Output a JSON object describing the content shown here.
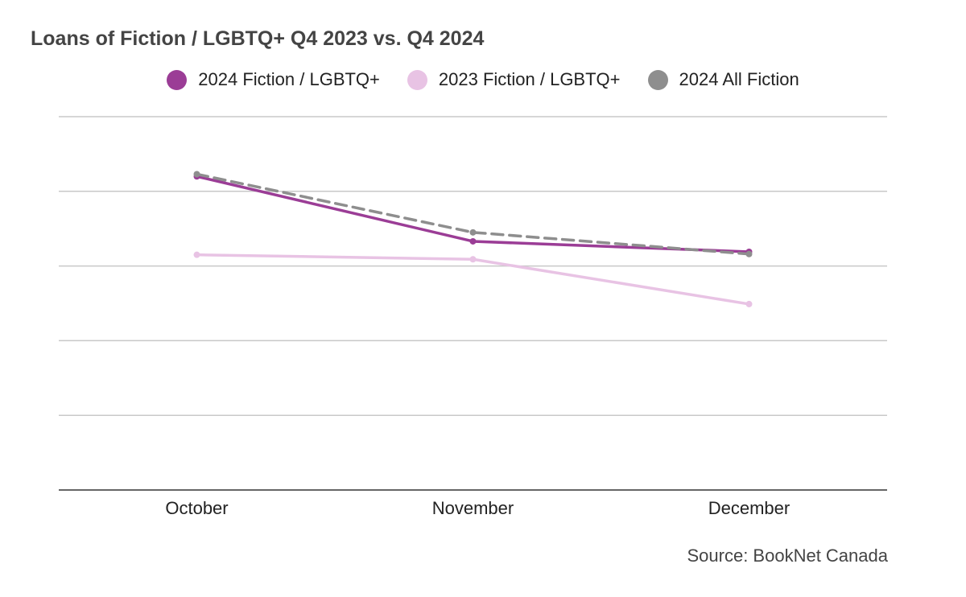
{
  "chart_data": {
    "type": "line",
    "title": "Loans of Fiction / LGBTQ+ Q4 2023 vs. Q4 2024",
    "categories": [
      "October",
      "November",
      "December"
    ],
    "ylim": [
      0,
      5
    ],
    "grid": true,
    "legend_placement": "top-center",
    "series": [
      {
        "name": "2024 Fiction / LGBTQ+",
        "values": [
          4.2,
          3.33,
          3.19
        ],
        "color": "#9b3d96",
        "dash": false
      },
      {
        "name": "2023 Fiction / LGBTQ+",
        "values": [
          3.15,
          3.09,
          2.49
        ],
        "color": "#e8c3e4",
        "dash": false
      },
      {
        "name": "2024 All Fiction",
        "values": [
          4.23,
          3.45,
          3.16
        ],
        "color": "#8e8e8e",
        "dash": true
      }
    ],
    "source": "Source: BookNet Canada"
  }
}
